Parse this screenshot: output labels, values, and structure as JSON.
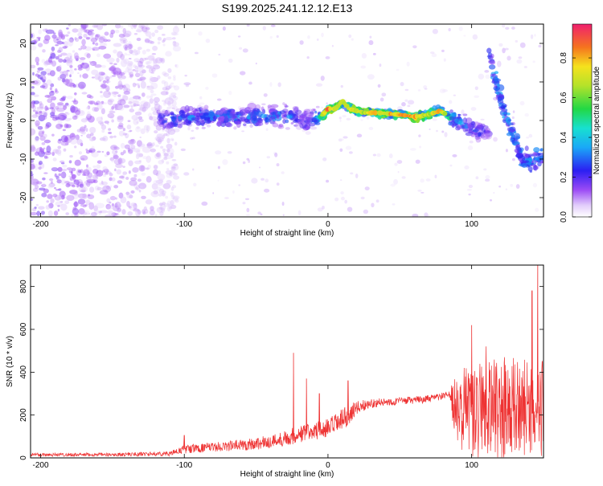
{
  "title": "S199.2025.241.12.12.E13",
  "colors": {
    "snr_line": "#ee3333",
    "ridge_high": "#ee3030",
    "ridge_mid": "#28d07a",
    "ridge_low": "#2a7cf0",
    "noise": "#7b2ff0",
    "noise_light": "#c8a8f2"
  },
  "colorbar": {
    "label": "Normalized spectral amplitude",
    "ticks": [
      "0.0",
      "0.2",
      "0.4",
      "0.6",
      "0.8"
    ],
    "tick_values": [
      0.0,
      0.2,
      0.4,
      0.6,
      0.8
    ],
    "range": [
      0,
      0.97
    ]
  },
  "chart_data": [
    {
      "type": "heatmap",
      "title": "S199.2025.241.12.12.E13",
      "xlabel": "Height of straight line (km)",
      "ylabel": "Frequency (Hz)",
      "xlim": [
        -207,
        150
      ],
      "ylim": [
        -25,
        25
      ],
      "xticks": [
        -200,
        -100,
        0,
        100
      ],
      "xtick_labels": [
        "-200",
        "-100",
        "0",
        "100"
      ],
      "yticks": [
        -20,
        -10,
        0,
        10,
        20
      ],
      "ytick_labels": [
        "-20",
        "-10",
        "0",
        "10",
        "20"
      ],
      "ridge": {
        "x": [
          -115,
          -90,
          -60,
          -30,
          -15,
          -5,
          0,
          5,
          10,
          15,
          25,
          35,
          50,
          60,
          70,
          78,
          85,
          95,
          105
        ],
        "freq": [
          0,
          1,
          1,
          1.5,
          0,
          1,
          3,
          3,
          5,
          3,
          2,
          2,
          1.5,
          1,
          1.5,
          2.5,
          1,
          -1,
          -3
        ],
        "amplitude": [
          0.35,
          0.4,
          0.4,
          0.45,
          0.3,
          0.6,
          0.9,
          0.8,
          0.7,
          0.75,
          0.75,
          0.8,
          0.85,
          0.9,
          0.7,
          0.85,
          0.6,
          0.4,
          0.3
        ]
      },
      "noise_region_x": [
        -207,
        -115
      ],
      "high_freq_branch": {
        "x": [
          112,
          118,
          125,
          135
        ],
        "freq": [
          18,
          8,
          0,
          -10
        ]
      }
    },
    {
      "type": "line",
      "xlabel": "Height of straight line (km)",
      "ylabel": "SNR (10 * v/v)",
      "xlim": [
        -207,
        150
      ],
      "ylim": [
        0,
        900
      ],
      "xticks": [
        -200,
        -100,
        0,
        100
      ],
      "xtick_labels": [
        "-200",
        "-100",
        "0",
        "100"
      ],
      "yticks": [
        0,
        200,
        400,
        600,
        800
      ],
      "ytick_labels": [
        "0",
        "200",
        "400",
        "600",
        "800"
      ],
      "trend": {
        "x": [
          -207,
          -150,
          -110,
          -100,
          -80,
          -60,
          -40,
          -20,
          -10,
          0,
          10,
          20,
          30,
          50,
          70,
          85,
          88,
          100,
          120,
          150
        ],
        "mean": [
          15,
          15,
          20,
          40,
          50,
          60,
          75,
          110,
          125,
          135,
          175,
          235,
          255,
          265,
          275,
          295,
          220,
          200,
          200,
          210
        ],
        "spread": [
          12,
          12,
          15,
          30,
          30,
          40,
          45,
          60,
          60,
          70,
          80,
          45,
          30,
          25,
          25,
          25,
          250,
          300,
          330,
          300
        ]
      },
      "spikes": [
        {
          "x": -100,
          "y": 105
        },
        {
          "x": -24,
          "y": 490
        },
        {
          "x": -15,
          "y": 370
        },
        {
          "x": -6,
          "y": 300
        },
        {
          "x": 14,
          "y": 360
        },
        {
          "x": 100,
          "y": 620
        },
        {
          "x": 110,
          "y": 520
        },
        {
          "x": 142,
          "y": 780
        },
        {
          "x": 146,
          "y": 905
        }
      ]
    }
  ]
}
